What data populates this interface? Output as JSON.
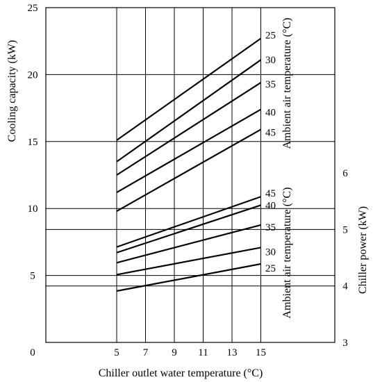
{
  "chart_data": {
    "type": "line",
    "xlabel": "Chiller outlet water temperature (°C)",
    "x_ticks": [
      5,
      7,
      9,
      11,
      13,
      15
    ],
    "x_extra_tick": 0,
    "left_axis": {
      "label": "Cooling capacity (kW)",
      "ticks": [
        5,
        10,
        15,
        20,
        25
      ],
      "range": [
        0,
        25
      ]
    },
    "right_axis": {
      "label": "Chiller power (kW)",
      "ticks": [
        3,
        4,
        5,
        6
      ],
      "range": [
        3,
        6
      ]
    },
    "top_panel": {
      "axis": "left",
      "legend_title": "Ambient air temperature (°C)",
      "series": [
        {
          "name": "25",
          "x": [
            5,
            15
          ],
          "y": [
            15.1,
            22.7
          ]
        },
        {
          "name": "30",
          "x": [
            5,
            15
          ],
          "y": [
            13.5,
            21.1
          ]
        },
        {
          "name": "35",
          "x": [
            5,
            15
          ],
          "y": [
            12.5,
            19.4
          ]
        },
        {
          "name": "40",
          "x": [
            5,
            15
          ],
          "y": [
            11.2,
            17.4
          ]
        },
        {
          "name": "45",
          "x": [
            5,
            15
          ],
          "y": [
            9.8,
            15.9
          ]
        }
      ]
    },
    "bottom_panel": {
      "axis": "right",
      "legend_title": "Ambient air temperature (°C)",
      "series": [
        {
          "name": "45",
          "x": [
            5,
            15
          ],
          "y": [
            4.69,
            5.58
          ]
        },
        {
          "name": "40",
          "x": [
            5,
            15
          ],
          "y": [
            4.59,
            5.43
          ]
        },
        {
          "name": "35",
          "x": [
            5,
            15
          ],
          "y": [
            4.41,
            5.08
          ]
        },
        {
          "name": "30",
          "x": [
            5,
            15
          ],
          "y": [
            4.2,
            4.68
          ]
        },
        {
          "name": "25",
          "x": [
            5,
            15
          ],
          "y": [
            3.91,
            4.39
          ]
        }
      ]
    },
    "grid": true
  }
}
